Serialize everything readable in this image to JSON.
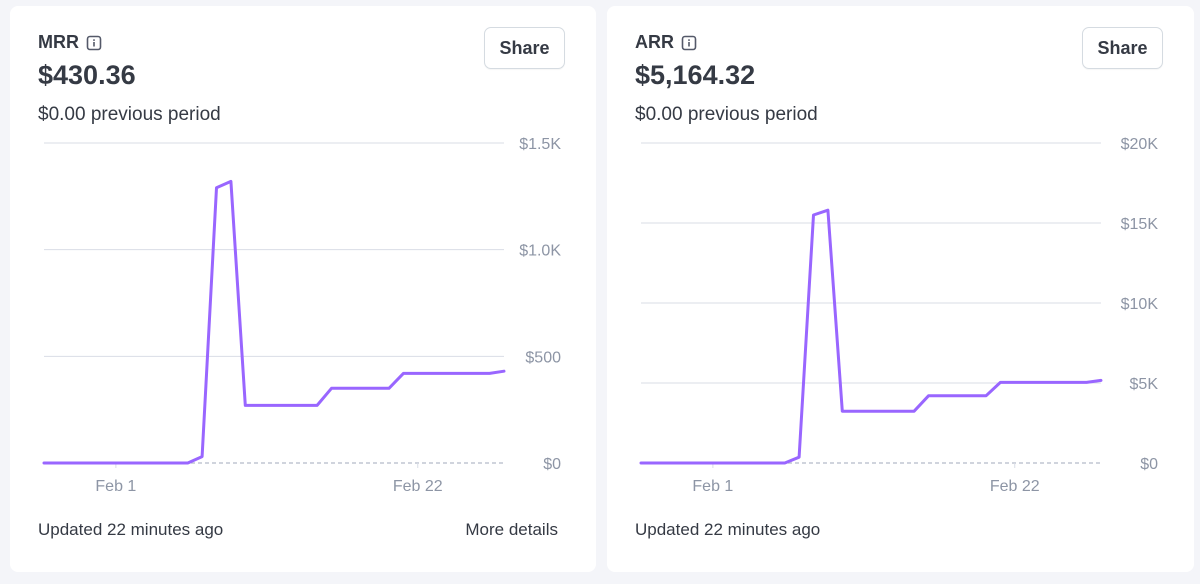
{
  "colors": {
    "line": "#9966ff",
    "grid": "#d9dde6",
    "tick": "#8d95a5",
    "dashed": "#c0c6d2"
  },
  "icons": {
    "info": "info-icon"
  },
  "cards": [
    {
      "title": "MRR",
      "value": "$430.36",
      "previous": "$0.00 previous period",
      "share_label": "Share",
      "updated": "Updated 22 minutes ago",
      "more_details": "More details"
    },
    {
      "title": "ARR",
      "value": "$5,164.32",
      "previous": "$0.00 previous period",
      "share_label": "Share",
      "updated": "Updated 22 minutes ago",
      "more_details": ""
    }
  ],
  "chart_data": [
    {
      "type": "line",
      "title": "MRR",
      "x": [
        "Jan 27",
        "Jan 28",
        "Jan 29",
        "Jan 30",
        "Jan 31",
        "Feb 1",
        "Feb 2",
        "Feb 3",
        "Feb 4",
        "Feb 5",
        "Feb 6",
        "Feb 7",
        "Feb 8",
        "Feb 9",
        "Feb 10",
        "Feb 11",
        "Feb 12",
        "Feb 13",
        "Feb 14",
        "Feb 15",
        "Feb 16",
        "Feb 17",
        "Feb 18",
        "Feb 19",
        "Feb 20",
        "Feb 21",
        "Feb 22",
        "Feb 23",
        "Feb 24",
        "Feb 25",
        "Feb 26",
        "Feb 27",
        "Feb 28"
      ],
      "values": [
        0,
        0,
        0,
        0,
        0,
        0,
        0,
        0,
        0,
        0,
        0,
        30,
        1290,
        1320,
        270,
        270,
        270,
        270,
        270,
        270,
        350,
        350,
        350,
        350,
        350,
        420,
        420,
        420,
        420,
        420,
        420,
        420,
        430.36
      ],
      "baseline": 0,
      "y_ticks": [
        0,
        500,
        1000,
        1500
      ],
      "y_tick_labels": [
        "$0",
        "$500",
        "$1.0K",
        "$1.5K"
      ],
      "ylim": [
        0,
        1500
      ],
      "x_tick_labels": [
        {
          "index": 5,
          "label": "Feb 1"
        },
        {
          "index": 26,
          "label": "Feb 22"
        }
      ],
      "grid": true,
      "y_axis_position": "right"
    },
    {
      "type": "line",
      "title": "ARR",
      "x": [
        "Jan 27",
        "Jan 28",
        "Jan 29",
        "Jan 30",
        "Jan 31",
        "Feb 1",
        "Feb 2",
        "Feb 3",
        "Feb 4",
        "Feb 5",
        "Feb 6",
        "Feb 7",
        "Feb 8",
        "Feb 9",
        "Feb 10",
        "Feb 11",
        "Feb 12",
        "Feb 13",
        "Feb 14",
        "Feb 15",
        "Feb 16",
        "Feb 17",
        "Feb 18",
        "Feb 19",
        "Feb 20",
        "Feb 21",
        "Feb 22",
        "Feb 23",
        "Feb 24",
        "Feb 25",
        "Feb 26",
        "Feb 27",
        "Feb 28"
      ],
      "values": [
        0,
        0,
        0,
        0,
        0,
        0,
        0,
        0,
        0,
        0,
        0,
        360,
        15500,
        15800,
        3240,
        3240,
        3240,
        3240,
        3240,
        3240,
        4200,
        4200,
        4200,
        4200,
        4200,
        5040,
        5040,
        5040,
        5040,
        5040,
        5040,
        5040,
        5164.32
      ],
      "baseline": 0,
      "y_ticks": [
        0,
        5000,
        10000,
        15000,
        20000
      ],
      "y_tick_labels": [
        "$0",
        "$5K",
        "$10K",
        "$15K",
        "$20K"
      ],
      "ylim": [
        0,
        20000
      ],
      "x_tick_labels": [
        {
          "index": 5,
          "label": "Feb 1"
        },
        {
          "index": 26,
          "label": "Feb 22"
        }
      ],
      "grid": true,
      "y_axis_position": "right"
    }
  ]
}
